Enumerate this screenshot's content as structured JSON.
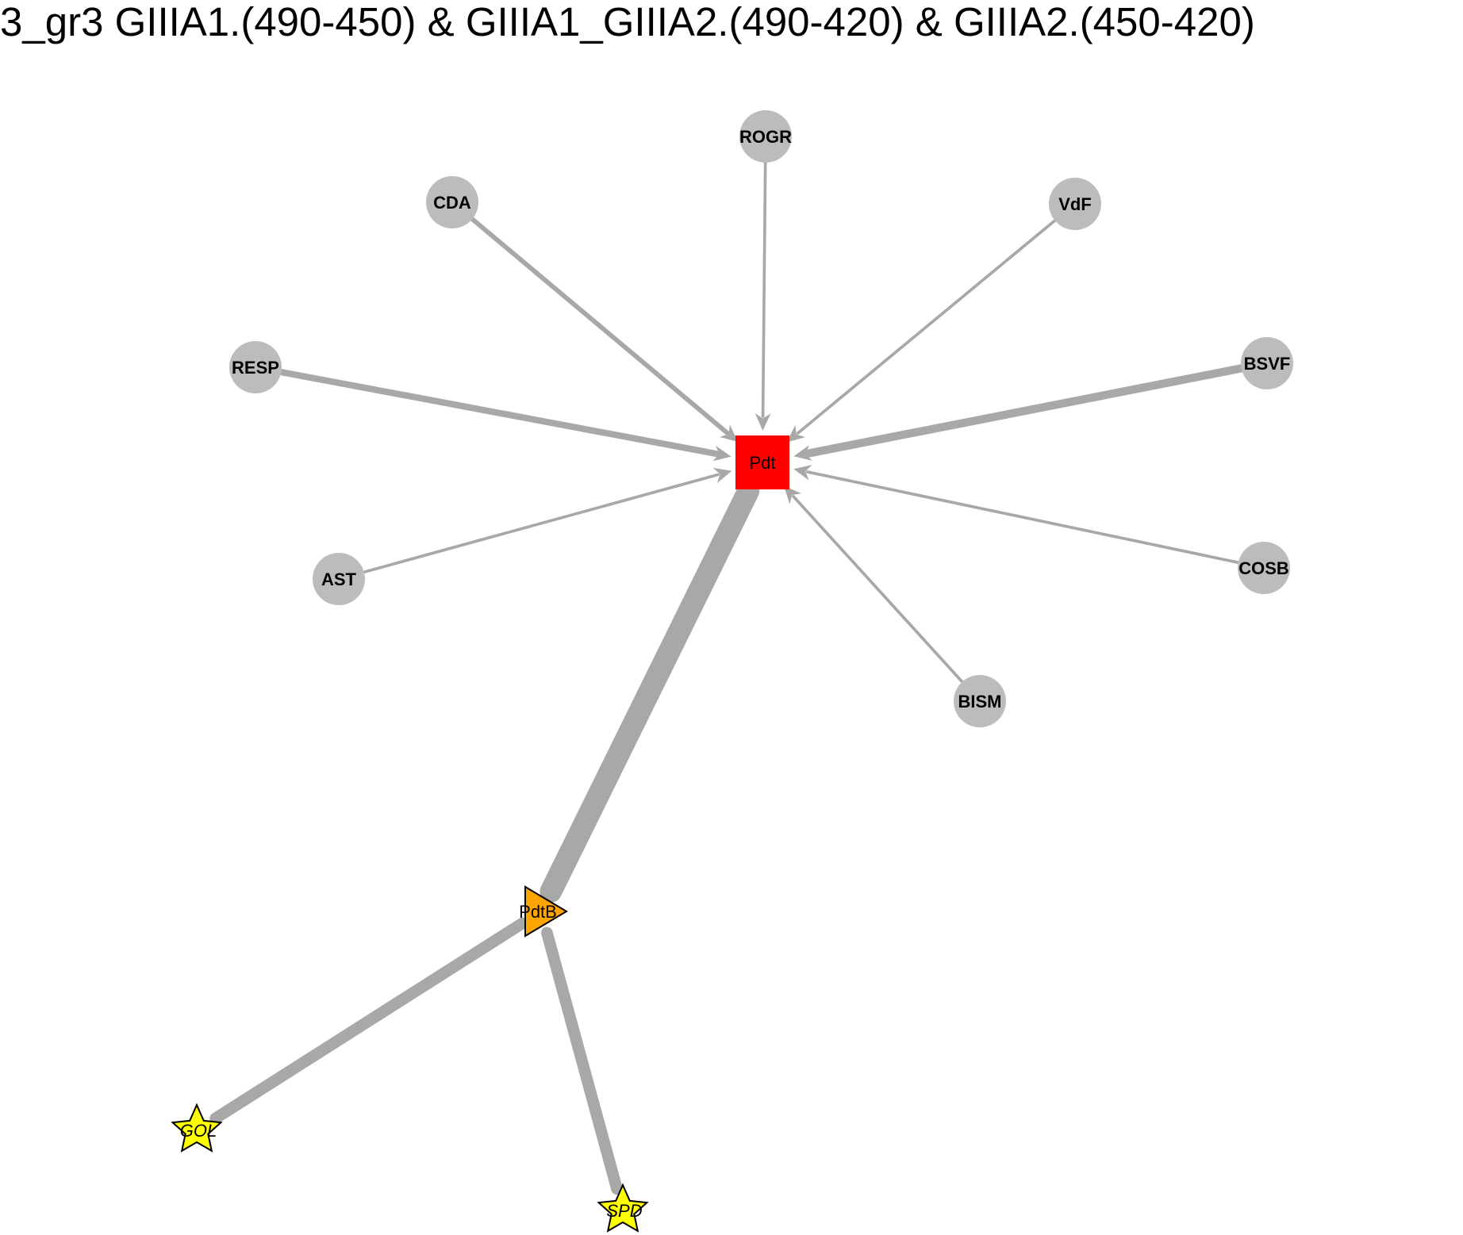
{
  "title": "3_gr3 GIIIA1.(490-450) & GIIIA1_GIIIA2.(490-420) & GIIIA2.(450-420)",
  "colors": {
    "edge": "#a8a8a8",
    "circle_node": "#bcbcbc",
    "square_node": "#ff0000",
    "triangle_node": "#ffa500",
    "star_node": "#ffff00",
    "outline": "#000000",
    "background": "#ffffff"
  },
  "nodes": [
    {
      "id": "ROGR",
      "label": "ROGR",
      "shape": "circle"
    },
    {
      "id": "CDA",
      "label": "CDA",
      "shape": "circle"
    },
    {
      "id": "VdF",
      "label": "VdF",
      "shape": "circle"
    },
    {
      "id": "RESP",
      "label": "RESP",
      "shape": "circle"
    },
    {
      "id": "BSVF",
      "label": "BSVF",
      "shape": "circle"
    },
    {
      "id": "AST",
      "label": "AST",
      "shape": "circle"
    },
    {
      "id": "COSB",
      "label": "COSB",
      "shape": "circle"
    },
    {
      "id": "BISM",
      "label": "BISM",
      "shape": "circle"
    },
    {
      "id": "Pdt",
      "label": "Pdt",
      "shape": "square"
    },
    {
      "id": "PdtB",
      "label": "PdtB",
      "shape": "triangle"
    },
    {
      "id": "GO",
      "label": "GOL",
      "shape": "star"
    },
    {
      "id": "SP",
      "label": "SPD",
      "shape": "star"
    }
  ],
  "edges": [
    {
      "from": "ROGR",
      "to": "Pdt",
      "weight": 1,
      "arrow": true
    },
    {
      "from": "CDA",
      "to": "Pdt",
      "weight": 2,
      "arrow": true
    },
    {
      "from": "VdF",
      "to": "Pdt",
      "weight": 1,
      "arrow": true
    },
    {
      "from": "RESP",
      "to": "Pdt",
      "weight": 3,
      "arrow": true
    },
    {
      "from": "BSVF",
      "to": "Pdt",
      "weight": 4,
      "arrow": true
    },
    {
      "from": "AST",
      "to": "Pdt",
      "weight": 1,
      "arrow": true
    },
    {
      "from": "COSB",
      "to": "Pdt",
      "weight": 1,
      "arrow": true
    },
    {
      "from": "BISM",
      "to": "Pdt",
      "weight": 1,
      "arrow": true
    },
    {
      "from": "Pdt",
      "to": "PdtB",
      "weight": 12,
      "arrow": false
    },
    {
      "from": "PdtB",
      "to": "GO",
      "weight": 6,
      "arrow": false
    },
    {
      "from": "PdtB",
      "to": "SP",
      "weight": 6,
      "arrow": false
    }
  ]
}
